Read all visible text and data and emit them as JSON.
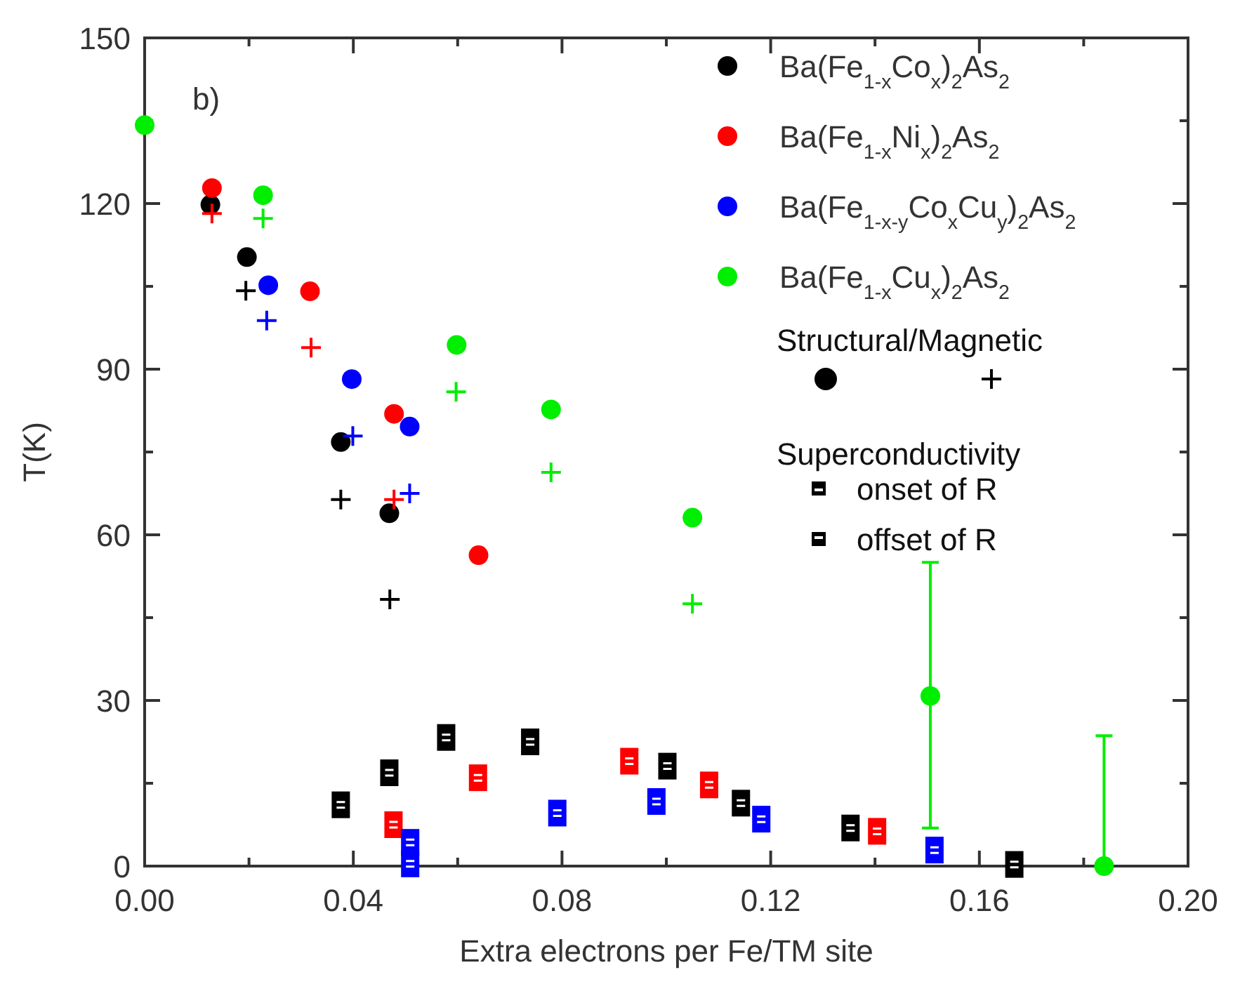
{
  "chart_data": {
    "type": "scatter",
    "xlabel": "Extra electrons per Fe/TM site",
    "ylabel": "T(K)",
    "xlim": [
      0,
      0.2
    ],
    "ylim": [
      0,
      150
    ],
    "xticks": [
      {
        "value": 0,
        "label": "0.00"
      },
      {
        "value": 0.02,
        "label": null
      },
      {
        "value": 0.04,
        "label": "0.04"
      },
      {
        "value": 0.06,
        "label": null
      },
      {
        "value": 0.08,
        "label": "0.08"
      },
      {
        "value": 0.1,
        "label": null
      },
      {
        "value": 0.12,
        "label": "0.12"
      },
      {
        "value": 0.14,
        "label": null
      },
      {
        "value": 0.16,
        "label": "0.16"
      },
      {
        "value": 0.18,
        "label": null
      },
      {
        "value": 0.2,
        "label": "0.20"
      }
    ],
    "yticks": [
      0,
      {
        "value": 15,
        "label": null
      },
      30,
      {
        "value": 45,
        "label": null
      },
      60,
      {
        "value": 75,
        "label": null
      },
      90,
      {
        "value": 105,
        "label": null
      },
      120,
      {
        "value": 135,
        "label": null
      },
      150
    ],
    "legend": "top right",
    "grid": false,
    "annotations": [
      "b)",
      "Structural/Magnetic",
      "Superconductivity",
      "onset of R",
      "offset of R"
    ],
    "series": [
      {
        "name": "Ba(Fe$_{1-x}$Co$_{x}$)$_{2}$As$_{2}$",
        "color": "#000000",
        "marker": "circle",
        "x": [
          0.0126,
          0.0196,
          0.0376,
          0.0469
        ],
        "values": [
          119.8,
          110.3,
          76.8,
          63.9
        ]
      },
      {
        "name": "Ba(Fe$_{1-x}$Ni$_{x}$)$_{2}$As$_{2}$",
        "color": "#ff0000",
        "marker": "circle",
        "x": [
          0.0129,
          0.0317,
          0.0478,
          0.064
        ],
        "values": [
          122.8,
          104.1,
          81.9,
          56.3
        ]
      },
      {
        "name": "Ba(Fe$_{1-x-y}$Co$_{x}$Cu$_{y}$)$_{2}$As$_{2}$",
        "color": "#0000ff",
        "marker": "circle",
        "x": [
          0.0237,
          0.0397,
          0.0508
        ],
        "values": [
          105.2,
          88.2,
          79.6
        ]
      },
      {
        "name": "Ba(Fe$_{1-x}$Cu$_{x}$)$_{2}$As$_{2}$",
        "color": "#00ee00",
        "marker": "circle",
        "x": [
          0,
          0.0227,
          0.0598,
          0.0779,
          0.105,
          0.1506,
          0.1839
        ],
        "values": [
          134.2,
          121.5,
          94.4,
          82.7,
          63.1,
          30.8,
          0
        ],
        "errors": [
          null,
          null,
          null,
          null,
          null,
          [
            6.9,
            55.0
          ],
          [
            0,
            23.6
          ]
        ]
      },
      {
        "color": "#000000",
        "marker": "cross",
        "x": [
          0.0194,
          0.0376,
          0.047
        ],
        "values": [
          104.2,
          66.4,
          48.3
        ]
      },
      {
        "color": "#ff0000",
        "marker": "cross",
        "x": [
          0.0129,
          0.0319,
          0.0478
        ],
        "values": [
          118.2,
          93.9,
          66.4
        ]
      },
      {
        "color": "#0000ff",
        "marker": "cross",
        "x": [
          0.0234,
          0.0399,
          0.0508
        ],
        "values": [
          98.8,
          77.9,
          67.5
        ]
      },
      {
        "color": "#00ee00",
        "marker": "cross",
        "x": [
          0.0227,
          0.0597,
          0.0779,
          0.105
        ],
        "values": [
          117.3,
          85.9,
          71.3,
          47.5
        ]
      },
      {
        "color": "#000000",
        "marker": "square",
        "x": [
          0.0376,
          0.0469,
          0.0578,
          0.0739,
          0.1002,
          0.1143,
          0.1353,
          0.1667
        ],
        "values": [
          11.1,
          16.9,
          23.3,
          22.5,
          18.1,
          11.4,
          6.9,
          0.3
        ]
      },
      {
        "color": "#ff0000",
        "marker": "square",
        "x": [
          0.0477,
          0.0639,
          0.0929,
          0.1082,
          0.1404
        ],
        "values": [
          7.5,
          16.0,
          19.0,
          14.7,
          6.3
        ]
      },
      {
        "color": "#0000ff",
        "marker": "square",
        "x": [
          0.0509,
          0.0509,
          0.0791,
          0.0981,
          0.1182,
          0.1514
        ],
        "values": [
          4.3,
          0.4,
          9.6,
          11.7,
          8.5,
          2.9
        ]
      }
    ]
  }
}
